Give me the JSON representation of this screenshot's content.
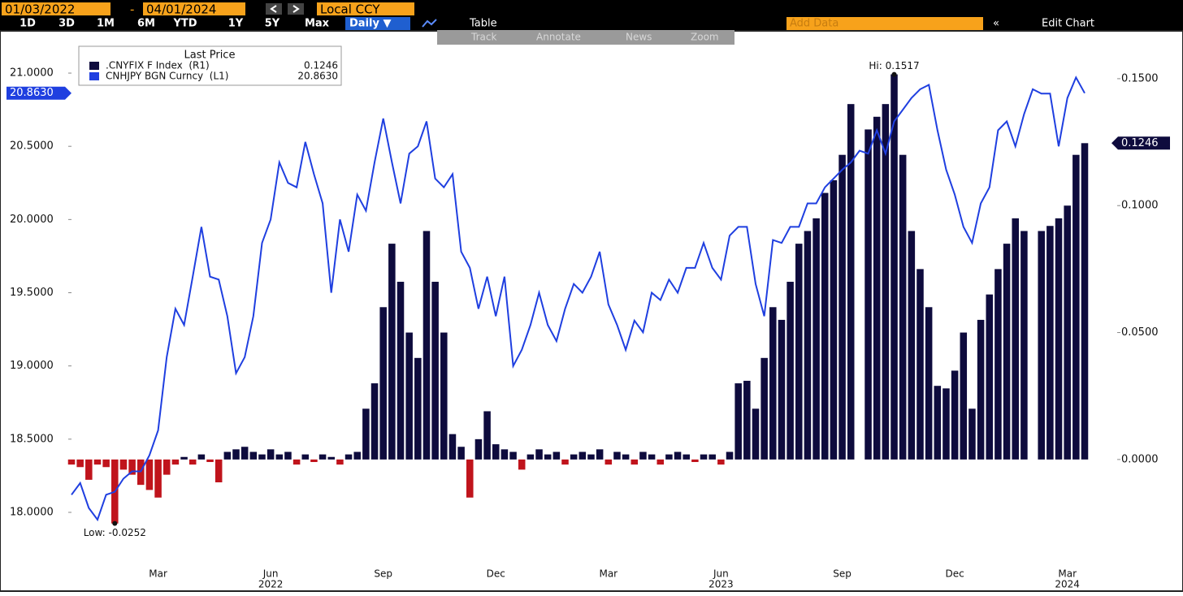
{
  "toolbar": {
    "start_date": "01/03/2022",
    "separator": "-",
    "end_date": "04/01/2024",
    "currency": "Local CCY",
    "periods": [
      "1D",
      "3D",
      "1M",
      "6M",
      "YTD",
      "1Y",
      "5Y",
      "Max"
    ],
    "frequency": "Daily ▼",
    "table": "Table",
    "add_data": "Add Data",
    "edit_chart": "Edit Chart",
    "tools": [
      "Track",
      "Annotate",
      "News",
      "Zoom"
    ]
  },
  "chart_data": {
    "type": "combo",
    "legend_title": "Last Price",
    "categories": [
      null,
      null,
      null,
      null,
      null,
      null,
      null,
      null,
      null,
      null,
      "Mar",
      null,
      null,
      null,
      null,
      null,
      null,
      null,
      null,
      null,
      null,
      null,
      null,
      "Jun",
      null,
      null,
      null,
      null,
      null,
      null,
      null,
      null,
      null,
      null,
      null,
      null,
      "Sep",
      null,
      null,
      null,
      null,
      null,
      null,
      null,
      null,
      null,
      null,
      null,
      null,
      "Dec",
      null,
      null,
      null,
      null,
      null,
      null,
      null,
      null,
      null,
      null,
      null,
      null,
      "Mar",
      null,
      null,
      null,
      null,
      null,
      null,
      null,
      null,
      null,
      null,
      null,
      null,
      "Jun",
      null,
      null,
      null,
      null,
      null,
      null,
      null,
      null,
      null,
      null,
      null,
      null,
      null,
      "Sep",
      null,
      null,
      null,
      null,
      null,
      null,
      null,
      null,
      null,
      null,
      null,
      null,
      "Dec",
      null,
      null,
      null,
      null,
      null,
      null,
      null,
      null,
      null,
      null,
      null,
      null,
      "Mar",
      null,
      null
    ],
    "category_groups": [
      null,
      null,
      null,
      null,
      null,
      null,
      null,
      null,
      null,
      null,
      null,
      null,
      null,
      null,
      null,
      null,
      null,
      null,
      null,
      null,
      null,
      null,
      null,
      "2022",
      null,
      null,
      null,
      null,
      null,
      null,
      null,
      null,
      null,
      null,
      null,
      null,
      null,
      null,
      null,
      null,
      null,
      null,
      null,
      null,
      null,
      null,
      null,
      null,
      null,
      null,
      null,
      null,
      null,
      null,
      null,
      null,
      null,
      null,
      null,
      null,
      null,
      null,
      null,
      null,
      null,
      null,
      null,
      null,
      null,
      null,
      null,
      null,
      null,
      null,
      null,
      "2023",
      null,
      null,
      null,
      null,
      null,
      null,
      null,
      null,
      null,
      null,
      null,
      null,
      null,
      null,
      null,
      null,
      null,
      null,
      null,
      null,
      null,
      null,
      null,
      null,
      null,
      null,
      null,
      null,
      null,
      null,
      null,
      null,
      null,
      null,
      null,
      null,
      null,
      null,
      null,
      "2024",
      null,
      null
    ],
    "series": [
      {
        "name": ".CNYFIX F Index  (R1)",
        "type": "bar",
        "axis": "y2",
        "color": "#0e0b3d",
        "negative_color": "#c0141c",
        "values": [
          -0.002,
          -0.003,
          -0.008,
          -0.002,
          -0.003,
          -0.0252,
          -0.004,
          -0.006,
          -0.01,
          -0.012,
          -0.015,
          -0.006,
          -0.002,
          0.001,
          -0.002,
          0.002,
          -0.001,
          -0.009,
          0.003,
          0.004,
          0.005,
          0.003,
          0.002,
          0.004,
          0.002,
          0.003,
          -0.002,
          0.002,
          -0.001,
          0.002,
          0.001,
          -0.002,
          0.002,
          0.003,
          0.02,
          0.03,
          0.06,
          0.085,
          0.07,
          0.05,
          0.04,
          0.09,
          0.07,
          0.05,
          0.01,
          0.005,
          -0.015,
          0.008,
          0.019,
          0.006,
          0.004,
          0.003,
          -0.004,
          0.002,
          0.004,
          0.002,
          0.003,
          -0.002,
          0.002,
          0.003,
          0.002,
          0.004,
          -0.002,
          0.003,
          0.002,
          -0.002,
          0.003,
          0.002,
          -0.002,
          0.002,
          0.003,
          0.002,
          -0.001,
          0.002,
          0.002,
          -0.002,
          0.003,
          0.03,
          0.031,
          0.02,
          0.04,
          0.06,
          0.055,
          0.07,
          0.085,
          0.09,
          0.095,
          0.105,
          0.11,
          0.12,
          0.14,
          null,
          0.13,
          0.135,
          0.14,
          0.1517,
          0.12,
          0.09,
          0.075,
          0.06,
          0.029,
          0.028,
          0.035,
          0.05,
          0.02,
          0.055,
          0.065,
          0.075,
          0.085,
          0.095,
          0.09,
          null,
          0.09,
          0.092,
          0.095,
          0.1,
          0.12,
          0.1246
        ],
        "value_labels": [
          null,
          null,
          null,
          null,
          null,
          null,
          null,
          null,
          null,
          null,
          null,
          null,
          null,
          null,
          null,
          null,
          null,
          null,
          null,
          null,
          null,
          null,
          null,
          null,
          null,
          null,
          null,
          null,
          null,
          null,
          null,
          null,
          null,
          null,
          null,
          null,
          null,
          null,
          null,
          null,
          null,
          null,
          null,
          null,
          null,
          null,
          null,
          null,
          null,
          null,
          null,
          null,
          null,
          null,
          null,
          null,
          null,
          null,
          null,
          null,
          null,
          null,
          null,
          null,
          null,
          null,
          null,
          null,
          null,
          null,
          null,
          null,
          null,
          null,
          null,
          null,
          null,
          null,
          null,
          null,
          null,
          null,
          null,
          null,
          null,
          null,
          null,
          null,
          null,
          null,
          null,
          null,
          null,
          null,
          null,
          null,
          null,
          null,
          null,
          null,
          null,
          null,
          null,
          null,
          null,
          null,
          null,
          null,
          null,
          null,
          null,
          null,
          null,
          null,
          null,
          null,
          null,
          "0.1246"
        ]
      },
      {
        "name": "CNHJPY BGN Curncy  (L1)",
        "type": "line",
        "axis": "y",
        "color": "#1f3fe0",
        "values": [
          18.12,
          18.2,
          18.03,
          17.95,
          18.12,
          18.14,
          18.23,
          18.28,
          18.28,
          18.39,
          18.56,
          19.06,
          19.39,
          19.28,
          19.61,
          19.95,
          19.61,
          19.59,
          19.34,
          18.95,
          19.06,
          19.34,
          19.84,
          20.0,
          20.39,
          20.25,
          20.22,
          20.53,
          20.31,
          20.11,
          19.5,
          20.0,
          19.78,
          20.17,
          20.06,
          20.39,
          20.69,
          20.39,
          20.11,
          20.45,
          20.5,
          20.67,
          20.28,
          20.22,
          20.31,
          19.78,
          19.67,
          19.39,
          19.61,
          19.34,
          19.61,
          19.0,
          19.11,
          19.28,
          19.5,
          19.28,
          19.17,
          19.39,
          19.56,
          19.5,
          19.61,
          19.78,
          19.42,
          19.28,
          19.11,
          19.31,
          19.23,
          19.5,
          19.45,
          19.59,
          19.5,
          19.67,
          19.67,
          19.84,
          19.67,
          19.59,
          19.89,
          19.95,
          19.95,
          19.56,
          19.34,
          19.86,
          19.84,
          19.95,
          19.95,
          20.11,
          20.11,
          20.22,
          20.28,
          20.34,
          20.39,
          20.47,
          20.45,
          20.61,
          20.45,
          20.67,
          20.75,
          20.83,
          20.89,
          20.92,
          20.61,
          20.34,
          20.17,
          19.95,
          19.84,
          20.11,
          20.22,
          20.61,
          20.67,
          20.5,
          20.72,
          20.89,
          20.86,
          20.86,
          20.5,
          20.83,
          20.97,
          20.863
        ],
        "value_labels": [
          null,
          null,
          null,
          null,
          null,
          null,
          null,
          null,
          null,
          null,
          null,
          null,
          null,
          null,
          null,
          null,
          null,
          null,
          null,
          null,
          null,
          null,
          null,
          null,
          null,
          null,
          null,
          null,
          null,
          null,
          null,
          null,
          null,
          null,
          null,
          null,
          null,
          null,
          null,
          null,
          null,
          null,
          null,
          null,
          null,
          null,
          null,
          null,
          null,
          null,
          null,
          null,
          null,
          null,
          null,
          null,
          null,
          null,
          null,
          null,
          null,
          null,
          null,
          null,
          null,
          null,
          null,
          null,
          null,
          null,
          null,
          null,
          null,
          null,
          null,
          null,
          null,
          null,
          null,
          null,
          null,
          null,
          null,
          null,
          null,
          null,
          null,
          null,
          null,
          null,
          null,
          null,
          null,
          null,
          null,
          null,
          null,
          null,
          null,
          null,
          null,
          null,
          null,
          null,
          null,
          null,
          null,
          null,
          null,
          null,
          null,
          null,
          null,
          null,
          null,
          null,
          null,
          "20.8630"
        ]
      }
    ],
    "ylim": [
      17.645,
      21.222
    ],
    "yticks": [
      {
        "value": 18,
        "label": "18.0000"
      },
      {
        "value": 18.5,
        "label": "18.5000"
      },
      {
        "value": 19,
        "label": "19.0000"
      },
      {
        "value": 19.5,
        "label": "19.5000"
      },
      {
        "value": 20,
        "label": "20.0000"
      },
      {
        "value": 20.5,
        "label": "20.5000"
      },
      {
        "value": 21,
        "label": "21.0000"
      }
    ],
    "y2lim": [
      -0.0413,
      0.165
    ],
    "y2ticks": [
      {
        "value": 0,
        "label": "0.0000"
      },
      {
        "value": 0.05,
        "label": "0.0500"
      },
      {
        "value": 0.1,
        "label": "0.1000"
      },
      {
        "value": 0.15,
        "label": "0.1500"
      }
    ],
    "annotations": {
      "high": "Hi: 0.1517",
      "low": "Low: -0.0252"
    },
    "grid": false
  }
}
